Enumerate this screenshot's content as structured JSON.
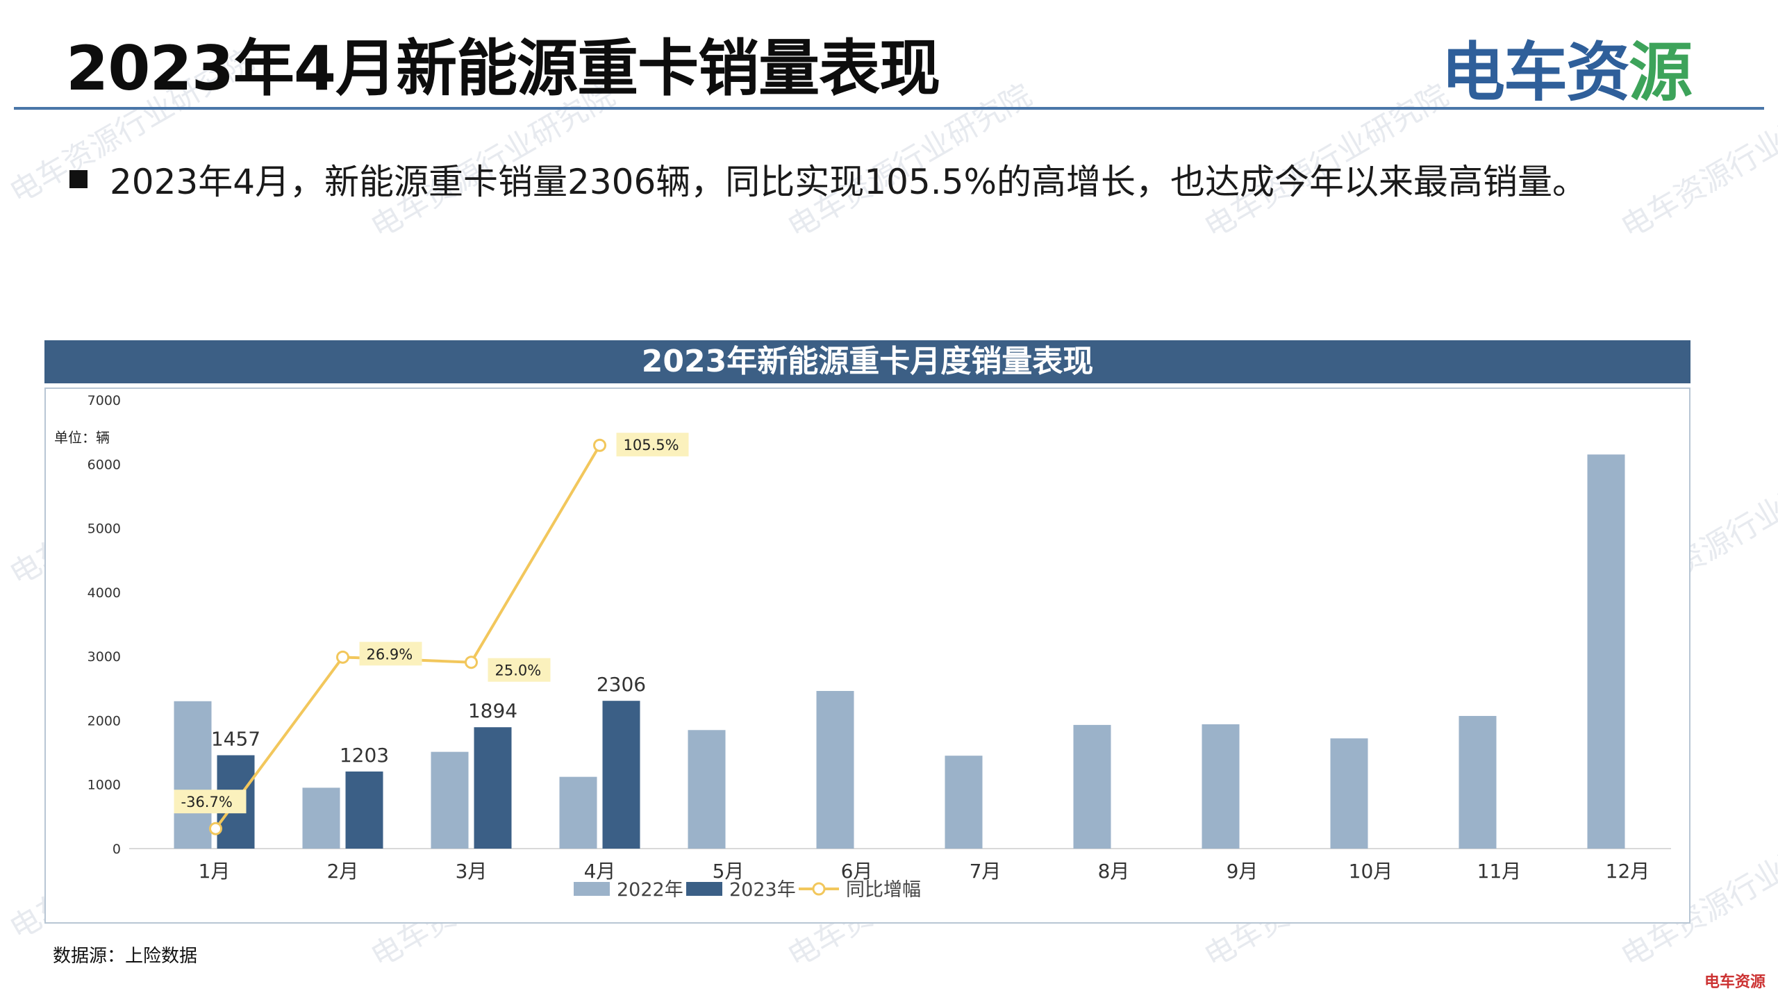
{
  "header": {
    "title": "2023年4月新能源重卡销量表现",
    "logo_main": "电车资",
    "logo_accent": "源"
  },
  "summary": "2023年4月，新能源重卡销量2306辆，同比实现105.5%的高增长，也达成今年以来最高销量。",
  "watermark_text": "电车资源行业研究院",
  "source_note": "数据源：上险数据",
  "corner_mark": "电车资源",
  "colors": {
    "header_bar": "#3c5f85",
    "series_2022": "#9bb2c9",
    "series_2023": "#3b5f86",
    "yoy_line": "#f2c75c",
    "yoy_label_bg": "#fbf1bd",
    "rule": "#4a76a8"
  },
  "chart_data": {
    "type": "bar",
    "title": "2023年新能源重卡月度销量表现",
    "unit_label": "单位：辆",
    "categories": [
      "1月",
      "2月",
      "3月",
      "4月",
      "5月",
      "6月",
      "7月",
      "8月",
      "9月",
      "10月",
      "11月",
      "12月"
    ],
    "ylim": [
      0,
      7000
    ],
    "yticks": [
      0,
      1000,
      2000,
      3000,
      4000,
      5000,
      6000,
      7000
    ],
    "series": [
      {
        "name": "2022年",
        "values": [
          2300,
          950,
          1510,
          1120,
          1850,
          2460,
          1450,
          1930,
          1940,
          1720,
          2070,
          6150
        ]
      },
      {
        "name": "2023年",
        "values": [
          1457,
          1203,
          1894,
          2306,
          null,
          null,
          null,
          null,
          null,
          null,
          null,
          null
        ],
        "data_labels": [
          "1457",
          "1203",
          "1894",
          "2306"
        ]
      }
    ],
    "yoy_line": {
      "name": "同比增幅",
      "values_pct": [
        -36.7,
        26.9,
        25.0,
        105.5
      ],
      "labels": [
        "-36.7%",
        "26.9%",
        "25.0%",
        "105.5%"
      ]
    },
    "legend": "bottom-center",
    "grid": false
  }
}
